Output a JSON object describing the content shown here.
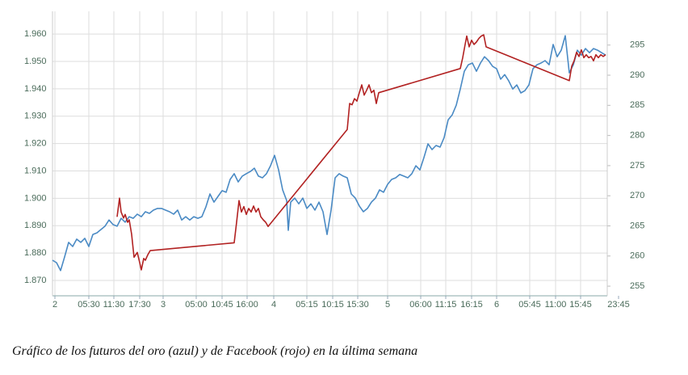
{
  "chart_data": {
    "type": "line",
    "caption": "Gráfico de los futuros del oro (azul) y de Facebook (rojo) en la última semana",
    "xlim": [
      65,
      752
    ],
    "xticks": [
      {
        "value": 68,
        "label": "2"
      },
      {
        "value": 110,
        "label": "05:30"
      },
      {
        "value": 141,
        "label": "11:30"
      },
      {
        "value": 173,
        "label": "17:30"
      },
      {
        "value": 202,
        "label": "3"
      },
      {
        "value": 243,
        "label": "05:00"
      },
      {
        "value": 275,
        "label": "10:45"
      },
      {
        "value": 306,
        "label": "16:00"
      },
      {
        "value": 339,
        "label": "4"
      },
      {
        "value": 380,
        "label": "05:15"
      },
      {
        "value": 412,
        "label": "10:15"
      },
      {
        "value": 443,
        "label": "15:30"
      },
      {
        "value": 480,
        "label": "5"
      },
      {
        "value": 521,
        "label": "06:00"
      },
      {
        "value": 552,
        "label": "11:15"
      },
      {
        "value": 584,
        "label": "16:15"
      },
      {
        "value": 615,
        "label": "6"
      },
      {
        "value": 656,
        "label": "05:45"
      },
      {
        "value": 688,
        "label": "11:00"
      },
      {
        "value": 719,
        "label": "15:45"
      },
      {
        "value": 766,
        "label": "23:45"
      }
    ],
    "ylim": [
      1.8644,
      1.9683
    ],
    "yticks": [
      {
        "value": 1.87,
        "label": "1.870"
      },
      {
        "value": 1.88,
        "label": "1.880"
      },
      {
        "value": 1.89,
        "label": "1.890"
      },
      {
        "value": 1.9,
        "label": "1.900"
      },
      {
        "value": 1.91,
        "label": "1.910"
      },
      {
        "value": 1.92,
        "label": "1.920"
      },
      {
        "value": 1.93,
        "label": "1.930"
      },
      {
        "value": 1.94,
        "label": "1.940"
      },
      {
        "value": 1.95,
        "label": "1.950"
      },
      {
        "value": 1.96,
        "label": "1.960"
      }
    ],
    "y2lim": [
      253.4,
      300.6
    ],
    "y2ticks": [
      255,
      260,
      265,
      270,
      275,
      280,
      285,
      290,
      295
    ],
    "grid": true,
    "series": [
      {
        "color": "#4a8ac4",
        "x": [
          65,
          70,
          75,
          80,
          85,
          90,
          95,
          100,
          105,
          110,
          115,
          120,
          125,
          130,
          135,
          140,
          145,
          150,
          155,
          160,
          165,
          170,
          175,
          180,
          185,
          190,
          195,
          200,
          205,
          210,
          215,
          220,
          225,
          230,
          235,
          240,
          245,
          250,
          255,
          260,
          265,
          270,
          275,
          280,
          285,
          290,
          295,
          300,
          305,
          310,
          315,
          320,
          325,
          330,
          335,
          340,
          345,
          350,
          355,
          357,
          360,
          365,
          370,
          375,
          380,
          385,
          390,
          395,
          400,
          405,
          410,
          415,
          420,
          425,
          430,
          435,
          440,
          445,
          450,
          455,
          460,
          465,
          470,
          475,
          480,
          485,
          490,
          495,
          500,
          505,
          510,
          515,
          520,
          525,
          530,
          535,
          540,
          545,
          550,
          555,
          560,
          565,
          570,
          575,
          580,
          585,
          590,
          595,
          600,
          605,
          610,
          615,
          620,
          625,
          630,
          635,
          640,
          645,
          650,
          655,
          660,
          665,
          670,
          675,
          680,
          685,
          690,
          695,
          700,
          705,
          710,
          715,
          720,
          725,
          730,
          735,
          740,
          745,
          750
        ],
        "values": [
          1.8774,
          1.8765,
          1.8736,
          1.8786,
          1.8839,
          1.8824,
          1.8851,
          1.8839,
          1.8854,
          1.8824,
          1.8868,
          1.8874,
          1.8886,
          1.8898,
          1.8921,
          1.8904,
          1.8898,
          1.8927,
          1.8913,
          1.8933,
          1.8927,
          1.8942,
          1.8933,
          1.8951,
          1.8945,
          1.8957,
          1.8963,
          1.8963,
          1.8957,
          1.8951,
          1.8942,
          1.8957,
          1.8921,
          1.8933,
          1.8921,
          1.8933,
          1.8927,
          1.8933,
          1.8969,
          1.9016,
          1.8986,
          1.9007,
          1.9028,
          1.9022,
          1.9069,
          1.909,
          1.906,
          1.9081,
          1.909,
          1.9098,
          1.911,
          1.9081,
          1.9075,
          1.909,
          1.9119,
          1.9157,
          1.9104,
          1.9031,
          1.8992,
          1.8883,
          1.8986,
          1.9001,
          1.898,
          1.9001,
          1.8963,
          1.898,
          1.8957,
          1.8986,
          1.8951,
          1.8868,
          1.8957,
          1.9075,
          1.909,
          1.9081,
          1.9075,
          1.9016,
          1.9001,
          1.8972,
          1.8951,
          1.8963,
          1.8986,
          1.9001,
          1.9031,
          1.9022,
          1.9051,
          1.9069,
          1.9075,
          1.9087,
          1.9081,
          1.9075,
          1.909,
          1.9119,
          1.9104,
          1.9149,
          1.9199,
          1.9178,
          1.9193,
          1.9187,
          1.9222,
          1.9287,
          1.9305,
          1.934,
          1.9399,
          1.9464,
          1.9488,
          1.9494,
          1.9464,
          1.9494,
          1.9517,
          1.9503,
          1.9482,
          1.9473,
          1.9435,
          1.9452,
          1.9429,
          1.9399,
          1.9414,
          1.9385,
          1.9393,
          1.9414,
          1.9473,
          1.9488,
          1.9494,
          1.9503,
          1.9488,
          1.9562,
          1.9517,
          1.9541,
          1.9594,
          1.9458,
          1.9488,
          1.9541,
          1.9523,
          1.9547,
          1.9532,
          1.9547,
          1.9541,
          1.9532,
          1.9523
        ]
      },
      {
        "color": "#b22222",
        "axis": "y2",
        "x": [
          145,
          148,
          150,
          153,
          155,
          158,
          160,
          163,
          166,
          170,
          173,
          175,
          178,
          180,
          183,
          186,
          290,
          293,
          296,
          299,
          302,
          305,
          308,
          311,
          314,
          317,
          320,
          323,
          326,
          329,
          332,
          430,
          433,
          436,
          439,
          442,
          445,
          448,
          451,
          454,
          457,
          460,
          463,
          466,
          469,
          570,
          573,
          576,
          578,
          581,
          584,
          587,
          590,
          593,
          596,
          599,
          602,
          705,
          708,
          711,
          714,
          717,
          720,
          723,
          726,
          729,
          732,
          735,
          738,
          741,
          744,
          747,
          750
        ],
        "values": [
          266.5,
          269.6,
          267.3,
          266.3,
          266.9,
          265.6,
          266.0,
          263.6,
          259.8,
          260.6,
          258.9,
          257.7,
          259.6,
          259.3,
          260.2,
          260.9,
          262.2,
          265.6,
          269.2,
          267.3,
          268.2,
          266.9,
          267.9,
          267.3,
          268.3,
          267.3,
          267.9,
          266.5,
          266.0,
          265.6,
          264.9,
          281.0,
          285.3,
          285.1,
          286.1,
          285.7,
          287.1,
          288.4,
          286.7,
          287.5,
          288.4,
          287.1,
          287.5,
          285.3,
          287.1,
          291.1,
          292.9,
          295.1,
          296.5,
          294.7,
          295.8,
          295.1,
          295.5,
          296.1,
          296.5,
          296.7,
          294.7,
          289.1,
          291.5,
          292.4,
          293.8,
          293.1,
          294.2,
          292.9,
          293.4,
          292.9,
          293.1,
          292.4,
          293.4,
          292.9,
          293.4,
          293.1,
          293.4
        ]
      }
    ]
  }
}
